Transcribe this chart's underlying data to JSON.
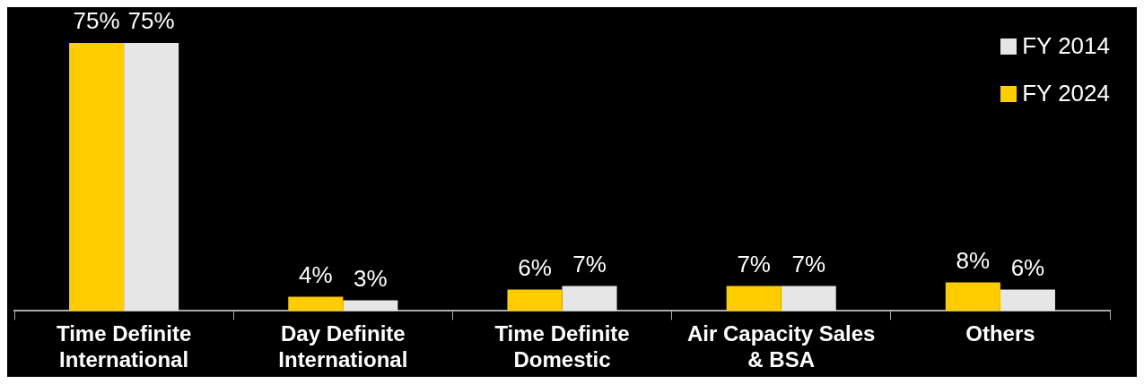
{
  "chart_data": {
    "type": "bar",
    "categories": [
      "Time Definite International",
      "Day Definite International",
      "Time Definite Domestic",
      "Air Capacity Sales & BSA",
      "Others"
    ],
    "series": [
      {
        "name": "FY 2024",
        "color": "#ffcc00",
        "values": [
          75,
          4,
          6,
          7,
          8
        ],
        "value_labels": [
          "75%",
          "4%",
          "6%",
          "7%",
          "8%"
        ]
      },
      {
        "name": "FY 2014",
        "color": "#e6e6e6",
        "values": [
          75,
          3,
          7,
          7,
          6
        ],
        "value_labels": [
          "75%",
          "3%",
          "7%",
          "7%",
          "6%"
        ]
      }
    ],
    "legend": "top right",
    "grid": false
  }
}
